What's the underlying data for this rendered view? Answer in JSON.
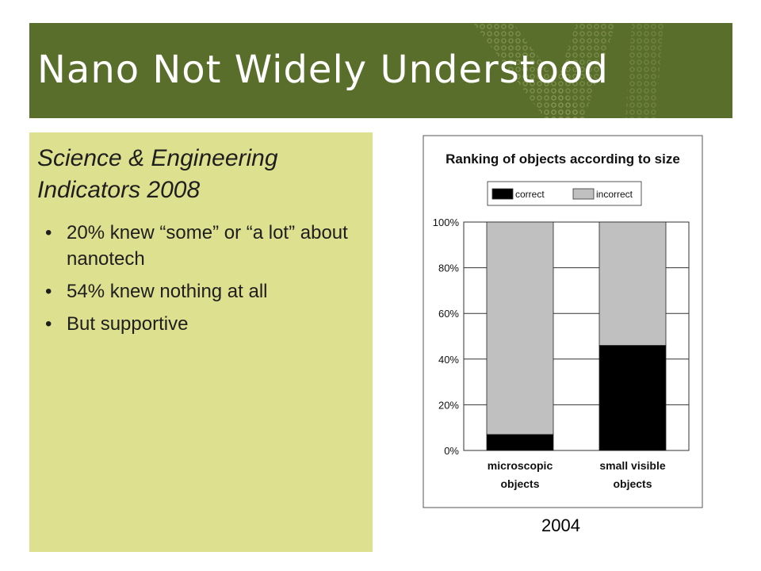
{
  "slide": {
    "title": "Nano Not Widely Understood",
    "subtitle": "Science & Engineering Indicators 2008",
    "bullets": [
      "20% knew “some” or “a lot” about nanotech",
      "54% knew nothing at all",
      "But supportive"
    ],
    "chart_caption": "2004"
  },
  "colors": {
    "header_bg": "#5a6e2c",
    "panel_bg": "#dde08e",
    "correct": "#000000",
    "incorrect": "#c0c0c0"
  },
  "chart_data": {
    "type": "bar",
    "stacked": true,
    "title": "Ranking of objects according to size",
    "categories": [
      "microscopic objects",
      "small visible objects"
    ],
    "category_lines": [
      [
        "microscopic",
        "objects"
      ],
      [
        "small visible",
        "objects"
      ]
    ],
    "series": [
      {
        "name": "correct",
        "color": "#000000",
        "values": [
          7,
          46
        ]
      },
      {
        "name": "incorrect",
        "color": "#c0c0c0",
        "values": [
          93,
          54
        ]
      }
    ],
    "ylim": [
      0,
      100
    ],
    "yticks": [
      0,
      20,
      40,
      60,
      80,
      100
    ],
    "ytick_labels": [
      "0%",
      "20%",
      "40%",
      "60%",
      "80%",
      "100%"
    ],
    "grid": true,
    "legend_position": "top-center"
  }
}
